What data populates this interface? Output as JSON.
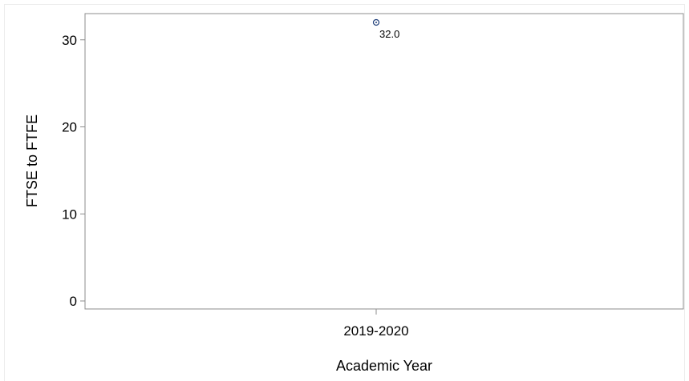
{
  "chart_data": {
    "type": "scatter",
    "title": "",
    "xlabel": "Academic Year",
    "ylabel": "FTSE to FTFE",
    "categories": [
      "2019-2020"
    ],
    "series": [
      {
        "values": [
          32.0
        ],
        "data_labels": [
          "32.0"
        ]
      }
    ],
    "ylim": [
      0,
      33
    ],
    "yticks": [
      0,
      10,
      20,
      30
    ],
    "ytick_labels": [
      "0",
      "10",
      "20",
      "30"
    ],
    "grid": false,
    "legend": "none",
    "colors": {
      "marker": "#1f3f7a",
      "axis": "#8c8c8c",
      "text": "#000000"
    }
  }
}
